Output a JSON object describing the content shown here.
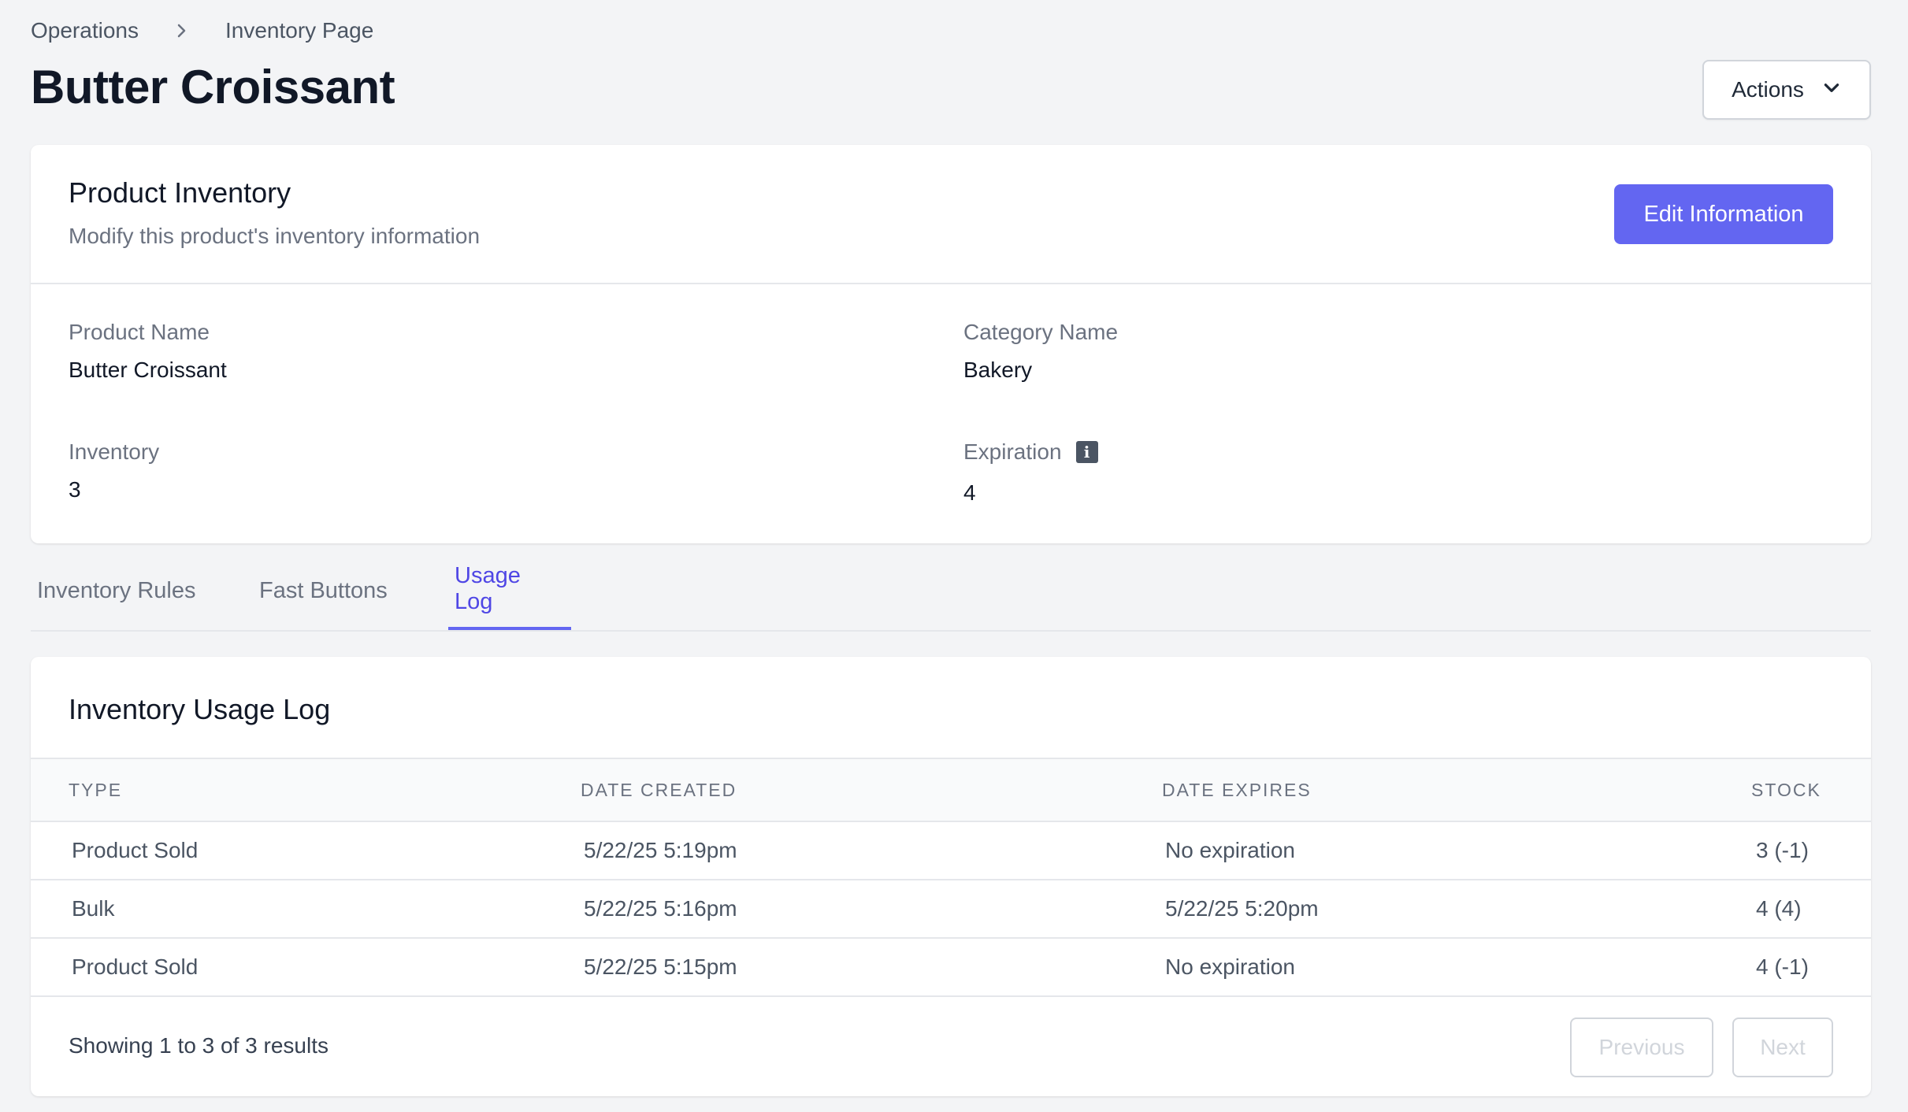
{
  "breadcrumb": {
    "items": [
      "Operations",
      "Inventory Page"
    ]
  },
  "page": {
    "title": "Butter Croissant",
    "actions_label": "Actions"
  },
  "inventory_card": {
    "title": "Product Inventory",
    "subtitle": "Modify this product's inventory information",
    "edit_label": "Edit Information",
    "fields": {
      "product_name": {
        "label": "Product Name",
        "value": "Butter Croissant"
      },
      "category_name": {
        "label": "Category Name",
        "value": "Bakery"
      },
      "inventory": {
        "label": "Inventory",
        "value": "3"
      },
      "expiration": {
        "label": "Expiration",
        "value": "4",
        "info_icon": "i"
      }
    }
  },
  "tabs": [
    {
      "label": "Inventory Rules",
      "active": false
    },
    {
      "label": "Fast Buttons",
      "active": false
    },
    {
      "label": "Usage Log",
      "active": true
    }
  ],
  "usage_log": {
    "title": "Inventory Usage Log",
    "columns": [
      "TYPE",
      "DATE CREATED",
      "DATE EXPIRES",
      "STOCK"
    ],
    "rows": [
      [
        "Product Sold",
        "5/22/25 5:19pm",
        "No expiration",
        "3 (-1)"
      ],
      [
        "Bulk",
        "5/22/25 5:16pm",
        "5/22/25 5:20pm",
        "4 (4)"
      ],
      [
        "Product Sold",
        "5/22/25 5:15pm",
        "No expiration",
        "4 (-1)"
      ]
    ],
    "footer": "Showing 1 to 3 of 3 results",
    "previous_label": "Previous",
    "next_label": "Next"
  },
  "colors": {
    "accent": "#6366f1",
    "accent_text": "#4f46e5",
    "background": "#f3f4f6"
  }
}
